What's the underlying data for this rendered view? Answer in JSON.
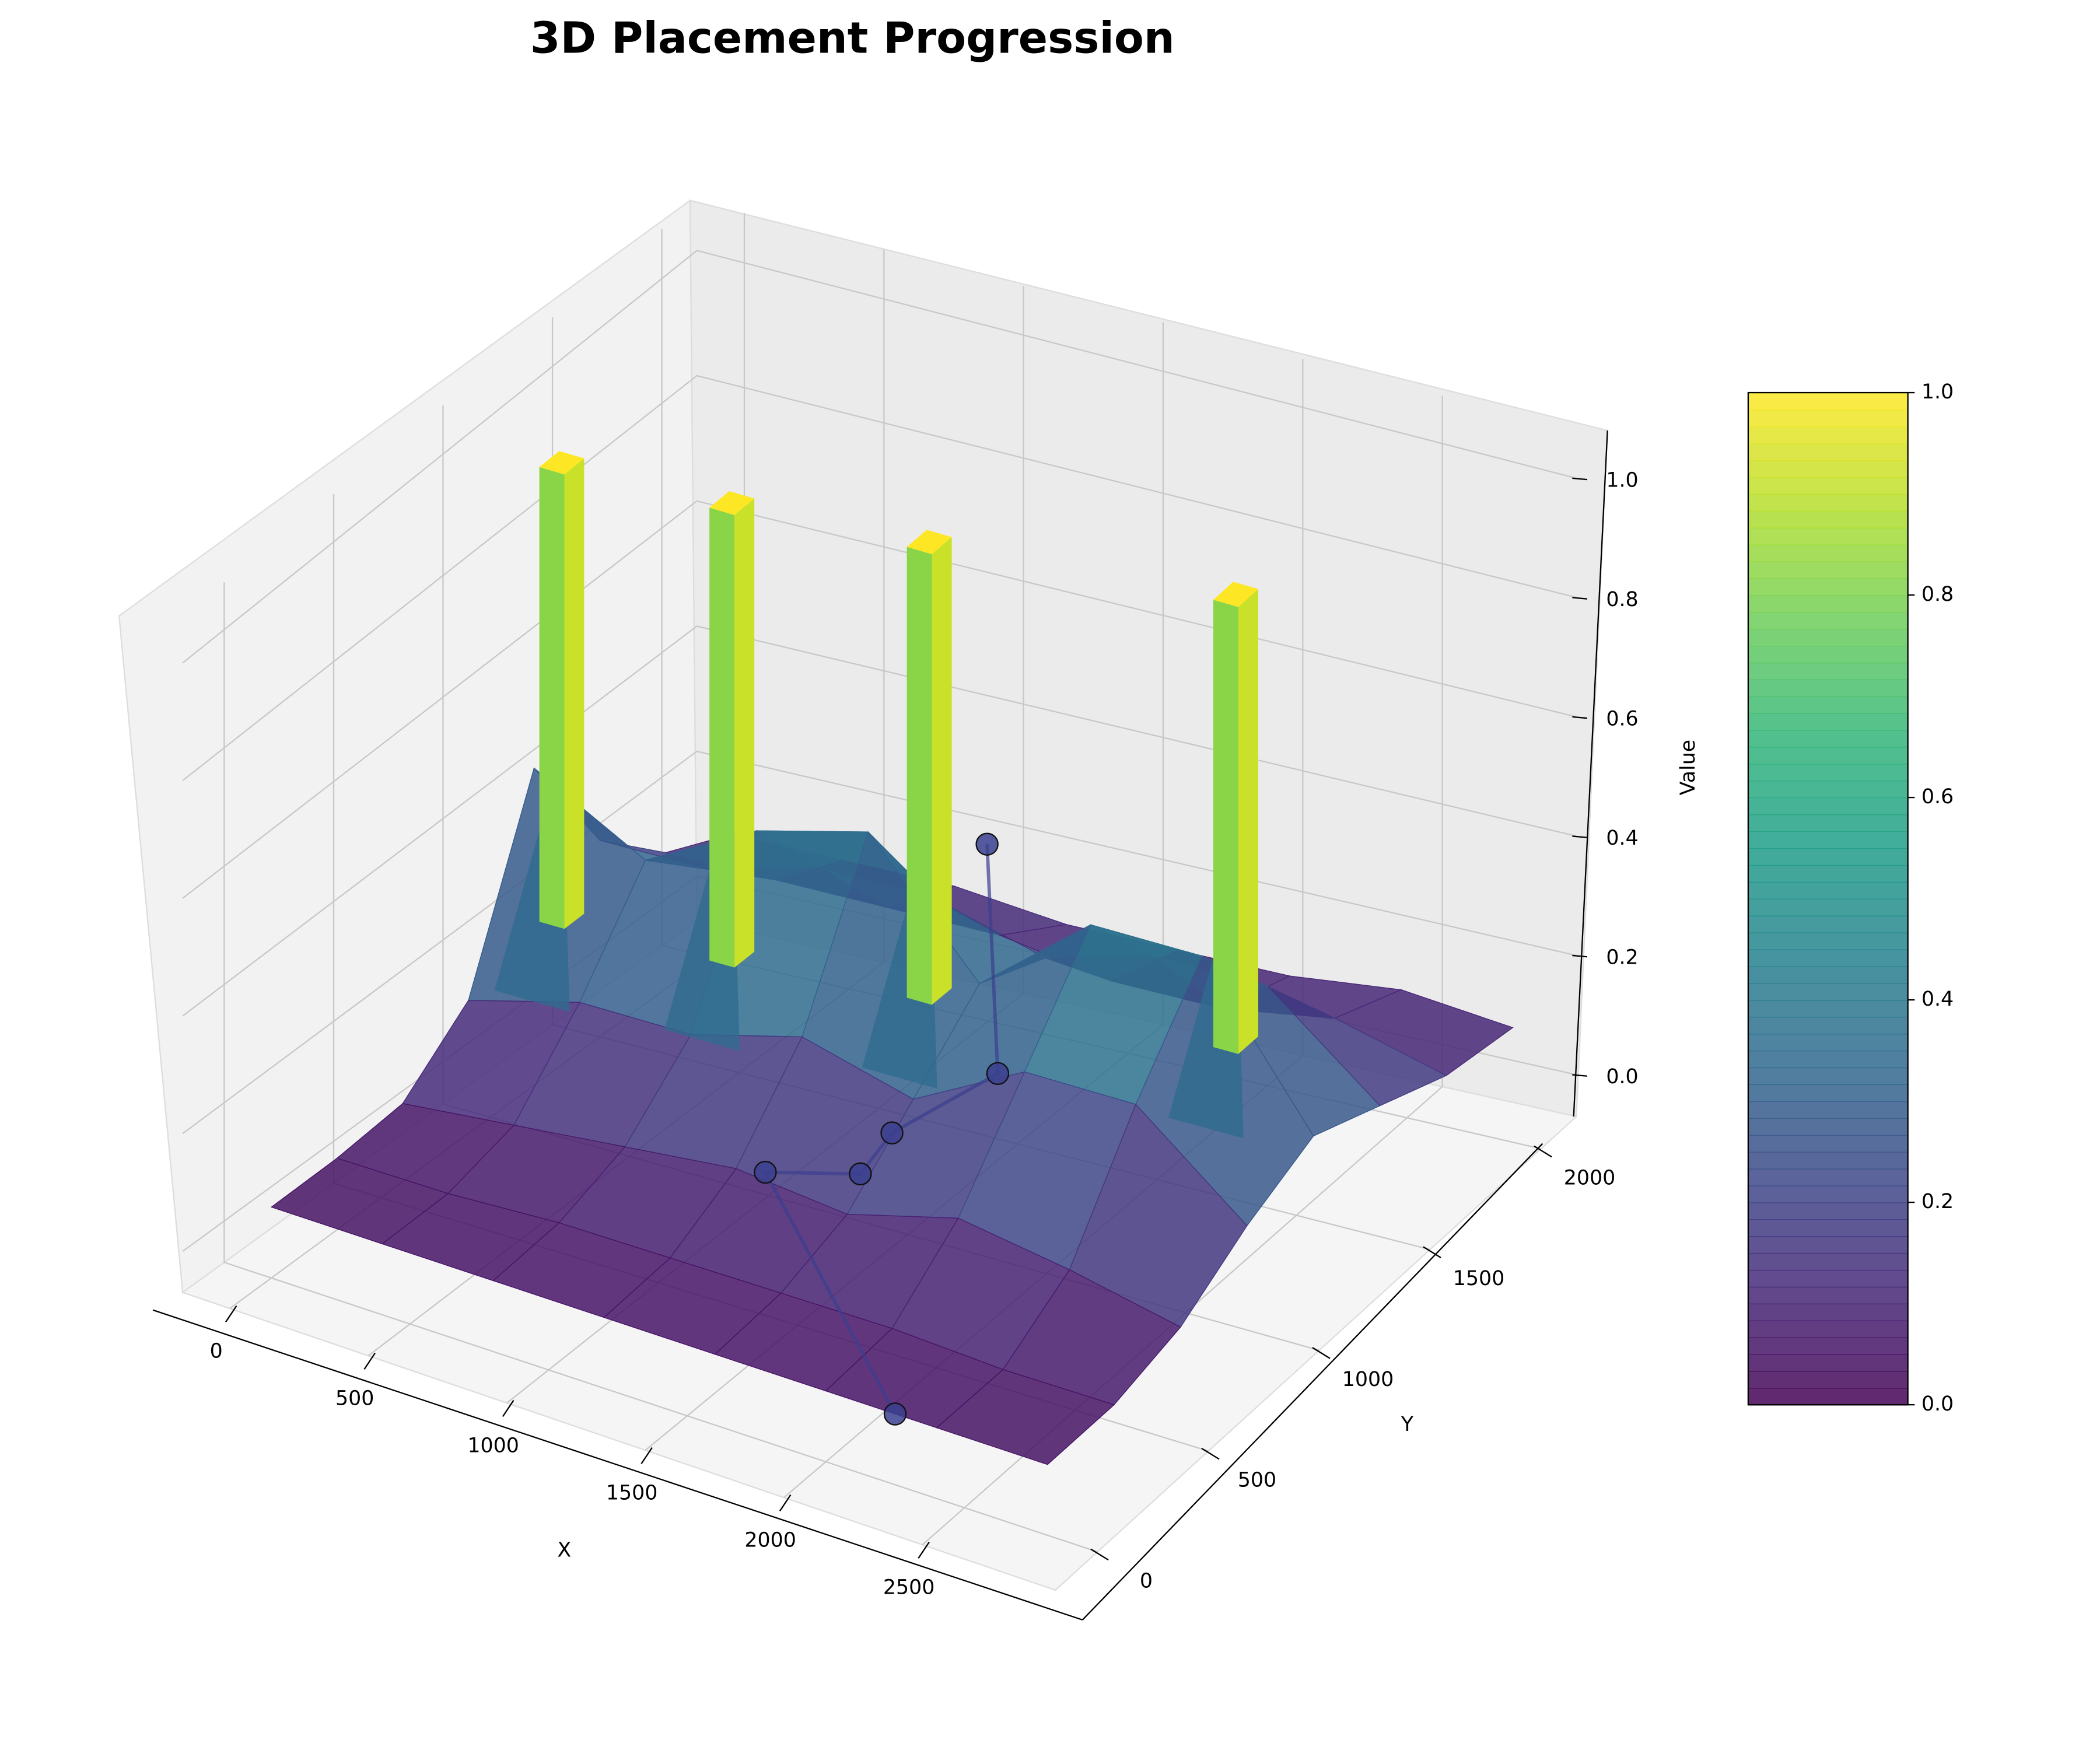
{
  "chart_data": {
    "type": "surface3d",
    "title": "3D Placement Progression",
    "x_label": "X",
    "y_label": "Y",
    "z_label": "Value",
    "xlim": [
      -170,
      2980
    ],
    "ylim": [
      -190,
      2160
    ],
    "zlim": [
      -0.07,
      1.08
    ],
    "xticks": [
      0,
      500,
      1000,
      1500,
      2000,
      2500
    ],
    "yticks": [
      0,
      500,
      1000,
      1500,
      2000
    ],
    "zticks": [
      {
        "value": 0,
        "label": "0.0"
      },
      {
        "value": 0.2,
        "label": "0.2"
      },
      {
        "value": 0.4,
        "label": "0.4"
      },
      {
        "value": 0.6,
        "label": "0.6"
      },
      {
        "value": 0.8,
        "label": "0.8"
      },
      {
        "value": 1,
        "label": "1.0"
      }
    ],
    "colormap": "viridis",
    "colorbar_ticks": [
      {
        "value": 0,
        "label": "0.0"
      },
      {
        "value": 0.2,
        "label": "0.2"
      },
      {
        "value": 0.4,
        "label": "0.4"
      },
      {
        "value": 0.6,
        "label": "0.6"
      },
      {
        "value": 0.8,
        "label": "0.8"
      },
      {
        "value": 1,
        "label": "1.0"
      }
    ],
    "surface": {
      "x": [
        0,
        400,
        800,
        1200,
        1600,
        2000,
        2400,
        2800
      ],
      "y": [
        0,
        300,
        600,
        900,
        1200,
        1500,
        1800,
        2100
      ],
      "z": [
        [
          0.05,
          0.05,
          0.05,
          0.05,
          0.05,
          0.05,
          0.05,
          0.05
        ],
        [
          0.05,
          0.05,
          0.06,
          0.06,
          0.06,
          0.06,
          0.05,
          0.05
        ],
        [
          0.06,
          0.08,
          0.1,
          0.12,
          0.1,
          0.15,
          0.12,
          0.08
        ],
        [
          0.15,
          0.2,
          0.2,
          0.25,
          0.2,
          0.3,
          0.3,
          0.15
        ],
        [
          0.45,
          0.35,
          0.45,
          0.5,
          0.3,
          0.45,
          0.45,
          0.2
        ],
        [
          0.25,
          0.25,
          0.3,
          0.3,
          0.25,
          0.3,
          0.3,
          0.15
        ],
        [
          0.15,
          0.15,
          0.15,
          0.15,
          0.12,
          0.12,
          0.15,
          0.1
        ],
        [
          0.1,
          0.1,
          0.1,
          0.08,
          0.08,
          0.08,
          0.1,
          0.08
        ]
      ]
    },
    "peaks": {
      "x": [
        170,
        750,
        1400,
        2390
      ],
      "y": [
        1110,
        1150,
        1225,
        1365
      ],
      "values": [
        1,
        1,
        1,
        1
      ]
    },
    "trajectory": {
      "color": "#3b3f8f",
      "x": [
        2250,
        1440,
        1695,
        1650,
        1745,
        1165
      ],
      "y": [
        0,
        430,
        540,
        740,
        1100,
        1785
      ],
      "values": [
        0.05,
        0.2,
        0.2,
        0.2,
        0.2,
        0.3
      ]
    }
  }
}
